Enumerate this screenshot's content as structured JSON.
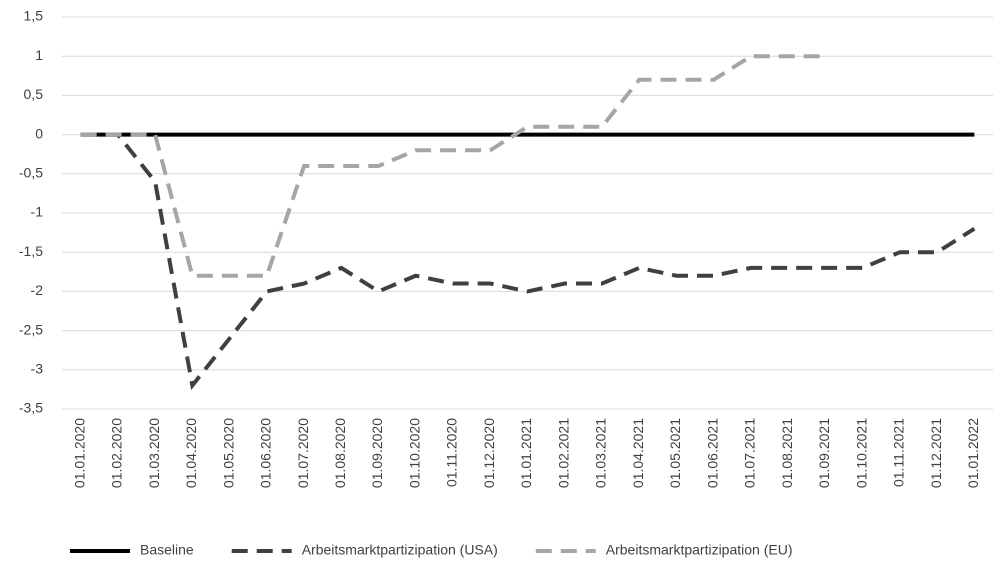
{
  "chart_data": {
    "type": "line",
    "categories": [
      "01.01.2020",
      "01.02.2020",
      "01.03.2020",
      "01.04.2020",
      "01.05.2020",
      "01.06.2020",
      "01.07.2020",
      "01.08.2020",
      "01.09.2020",
      "01.10.2020",
      "01.11.2020",
      "01.12.2020",
      "01.01.2021",
      "01.02.2021",
      "01.03.2021",
      "01.04.2021",
      "01.05.2021",
      "01.06.2021",
      "01.07.2021",
      "01.08.2021",
      "01.09.2021",
      "01.10.2021",
      "01.11.2021",
      "01.12.2021",
      "01.01.2022"
    ],
    "series": [
      {
        "name": "Baseline",
        "color": "#000000",
        "dashed": false,
        "values": [
          0,
          0,
          0,
          0,
          0,
          0,
          0,
          0,
          0,
          0,
          0,
          0,
          0,
          0,
          0,
          0,
          0,
          0,
          0,
          0,
          0,
          0,
          0,
          0,
          0
        ]
      },
      {
        "name": "Arbeitsmarktpartizipation (USA)",
        "color": "#404040",
        "dashed": true,
        "values": [
          0,
          0,
          -0.6,
          -3.2,
          -2.6,
          -2.0,
          -1.9,
          -1.7,
          -2.0,
          -1.8,
          -1.9,
          -1.9,
          -2.0,
          -1.9,
          -1.9,
          -1.7,
          -1.8,
          -1.8,
          -1.7,
          -1.7,
          -1.7,
          -1.7,
          -1.5,
          -1.5,
          -1.2
        ]
      },
      {
        "name": "Arbeitsmarktpartizipation (EU)",
        "color": "#a6a6a6",
        "dashed": true,
        "values": [
          0,
          0,
          0,
          -1.8,
          -1.8,
          -1.8,
          -0.4,
          -0.4,
          -0.4,
          -0.2,
          -0.2,
          -0.2,
          0.1,
          0.1,
          0.1,
          0.7,
          0.7,
          0.7,
          1.0,
          1.0,
          1.0,
          null,
          null,
          null,
          null
        ]
      }
    ],
    "ylim": [
      -3.5,
      1.5
    ],
    "yticks": [
      {
        "value": 1.5,
        "label": "1,5"
      },
      1,
      {
        "value": 0.5,
        "label": "0,5"
      },
      0,
      {
        "value": -0.5,
        "label": "-0,5"
      },
      -1,
      {
        "value": -1.5,
        "label": "-1,5"
      },
      -2,
      {
        "value": -2.5,
        "label": "-2,5"
      },
      -3,
      {
        "value": -3.5,
        "label": "-3,5"
      }
    ],
    "grid": true,
    "legend": "bottom"
  }
}
